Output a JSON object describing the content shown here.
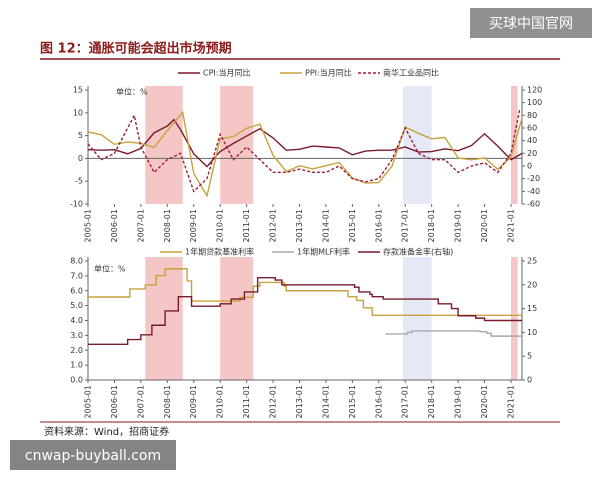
{
  "watermarks": [
    "买球中国官网",
    "cnwap-buyball.com"
  ],
  "source": "资料来源：Wind，招商证券",
  "chart_data": [
    {
      "type": "line",
      "title": "图 12：通胀可能会超出市场预期",
      "annotation": "单位：%",
      "xlim": [
        "2005-01",
        "2021-06"
      ],
      "xticks": [
        "2005-01",
        "2006-01",
        "2007-01",
        "2008-01",
        "2009-01",
        "2010-01",
        "2011-01",
        "2012-01",
        "2013-01",
        "2014-01",
        "2015-01",
        "2016-01",
        "2017-01",
        "2018-01",
        "2019-01",
        "2020-01",
        "2021-01"
      ],
      "ylim": [
        -10,
        15
      ],
      "yticks": [
        -10,
        -5,
        0,
        5,
        10,
        15
      ],
      "y2lim": [
        -60,
        120
      ],
      "y2ticks": [
        -60,
        -40,
        -20,
        0,
        20,
        40,
        60,
        80,
        100,
        120
      ],
      "highlight_ranges": [
        {
          "start": "2007-03",
          "end": "2008-08",
          "color": "#f2b8b8"
        },
        {
          "start": "2010-01",
          "end": "2011-04",
          "color": "#f2b8b8"
        },
        {
          "start": "2016-12",
          "end": "2018-01",
          "color": "#dfe3f5"
        },
        {
          "start": "2021-01",
          "end": "2021-04",
          "color": "#f2b8b8"
        }
      ],
      "series": [
        {
          "name": "CPI:当月同比",
          "color": "#7a1b2a",
          "x": [
            "2005-01",
            "2005-07",
            "2006-01",
            "2006-07",
            "2007-01",
            "2007-07",
            "2008-01",
            "2008-04",
            "2008-07",
            "2009-01",
            "2009-07",
            "2010-01",
            "2010-07",
            "2011-01",
            "2011-07",
            "2012-01",
            "2012-07",
            "2013-01",
            "2013-07",
            "2014-01",
            "2014-07",
            "2015-01",
            "2015-07",
            "2016-01",
            "2016-07",
            "2017-01",
            "2017-07",
            "2018-01",
            "2018-07",
            "2019-01",
            "2019-07",
            "2020-01",
            "2020-07",
            "2021-01",
            "2021-06"
          ],
          "values": [
            1.9,
            1.8,
            1.9,
            1.0,
            2.2,
            5.6,
            7.1,
            8.5,
            6.3,
            1.0,
            -1.8,
            1.5,
            3.3,
            4.9,
            6.5,
            4.5,
            1.8,
            2.0,
            2.7,
            2.5,
            2.3,
            0.8,
            1.6,
            1.8,
            1.8,
            2.5,
            1.4,
            1.5,
            2.1,
            1.7,
            2.8,
            5.4,
            2.7,
            -0.3,
            1.1
          ]
        },
        {
          "name": "PPI:当月同比",
          "color": "#c8a23c",
          "x": [
            "2005-01",
            "2005-07",
            "2006-01",
            "2006-07",
            "2007-01",
            "2007-07",
            "2008-01",
            "2008-08",
            "2009-01",
            "2009-07",
            "2010-01",
            "2010-07",
            "2011-01",
            "2011-07",
            "2012-01",
            "2012-07",
            "2013-01",
            "2013-07",
            "2014-01",
            "2014-07",
            "2015-01",
            "2015-07",
            "2016-01",
            "2016-07",
            "2017-01",
            "2017-07",
            "2018-01",
            "2018-07",
            "2019-01",
            "2019-07",
            "2020-01",
            "2020-07",
            "2021-01",
            "2021-06"
          ],
          "values": [
            5.8,
            5.2,
            3.1,
            3.6,
            3.3,
            2.4,
            6.1,
            10.1,
            -3.3,
            -8.2,
            4.3,
            4.8,
            6.6,
            7.5,
            0.7,
            -2.9,
            -1.6,
            -2.3,
            -1.6,
            -0.9,
            -4.3,
            -5.4,
            -5.3,
            -1.7,
            6.9,
            5.5,
            4.3,
            4.6,
            0.1,
            -0.3,
            0.1,
            -2.4,
            0.3,
            8.8
          ]
        },
        {
          "name": "南华工业品同比",
          "color": "#a01f3a",
          "axis": "y2",
          "dash": true,
          "x": [
            "2005-01",
            "2005-07",
            "2006-01",
            "2006-07",
            "2006-10",
            "2007-01",
            "2007-07",
            "2008-01",
            "2008-07",
            "2009-01",
            "2009-07",
            "2010-01",
            "2010-07",
            "2011-01",
            "2011-07",
            "2012-01",
            "2012-07",
            "2013-01",
            "2013-07",
            "2014-01",
            "2014-07",
            "2015-01",
            "2015-07",
            "2016-01",
            "2016-07",
            "2017-01",
            "2017-07",
            "2018-01",
            "2018-07",
            "2019-01",
            "2019-07",
            "2020-01",
            "2020-07",
            "2021-01",
            "2021-05"
          ],
          "values": [
            35,
            10,
            20,
            60,
            80,
            30,
            -10,
            10,
            20,
            -40,
            -20,
            50,
            10,
            30,
            10,
            -10,
            -10,
            -5,
            -10,
            -10,
            0,
            -20,
            -25,
            -20,
            10,
            60,
            20,
            10,
            10,
            -10,
            0,
            5,
            -10,
            20,
            90
          ]
        }
      ]
    },
    {
      "type": "line",
      "annotation": "单位：%",
      "xlim": [
        "2005-01",
        "2021-06"
      ],
      "xticks": [
        "2005-01",
        "2006-01",
        "2007-01",
        "2008-01",
        "2009-01",
        "2010-01",
        "2011-01",
        "2012-01",
        "2013-01",
        "2014-01",
        "2015-01",
        "2016-01",
        "2017-01",
        "2018-01",
        "2019-01",
        "2020-01",
        "2021-01"
      ],
      "ylim": [
        0,
        8
      ],
      "yticks": [
        {
          "value": 0,
          "label": "0.0"
        },
        {
          "value": 1,
          "label": "1.0"
        },
        {
          "value": 2,
          "label": "2.0"
        },
        {
          "value": 3,
          "label": "3.0"
        },
        {
          "value": 4,
          "label": "4.0"
        },
        {
          "value": 5,
          "label": "5.0"
        },
        {
          "value": 6,
          "label": "6.0"
        },
        {
          "value": 7,
          "label": "7.0"
        },
        {
          "value": 8,
          "label": "8.0"
        }
      ],
      "y2lim": [
        0,
        25
      ],
      "y2ticks": [
        0,
        5,
        10,
        15,
        20,
        25
      ],
      "highlight_ranges": [
        {
          "start": "2007-03",
          "end": "2008-08",
          "color": "#f2b8b8"
        },
        {
          "start": "2010-01",
          "end": "2011-04",
          "color": "#f2b8b8"
        },
        {
          "start": "2016-12",
          "end": "2018-01",
          "color": "#dfe3f5"
        },
        {
          "start": "2021-01",
          "end": "2021-04",
          "color": "#f2b8b8"
        }
      ],
      "series": [
        {
          "name": "1年期贷款基准利率",
          "color": "#c8a23c",
          "step": true,
          "x": [
            "2005-01",
            "2006-08",
            "2007-03",
            "2007-08",
            "2007-12",
            "2008-10",
            "2008-12",
            "2010-10",
            "2011-04",
            "2011-07",
            "2012-06",
            "2012-07",
            "2014-11",
            "2015-03",
            "2015-06",
            "2015-10",
            "2021-06"
          ],
          "values": [
            5.58,
            6.12,
            6.39,
            7.02,
            7.47,
            6.66,
            5.31,
            5.56,
            6.31,
            6.56,
            6.31,
            6.0,
            5.6,
            5.35,
            4.85,
            4.35,
            4.35
          ]
        },
        {
          "name": "1年期MLF利率",
          "color": "#a8a8a8",
          "step": true,
          "x": [
            "2016-04",
            "2017-02",
            "2017-04",
            "2019-11",
            "2020-02",
            "2020-04",
            "2021-06"
          ],
          "values": [
            3.1,
            3.2,
            3.3,
            3.25,
            3.15,
            2.95,
            2.95
          ]
        },
        {
          "name": "存款准备金率(右轴)",
          "color": "#7a1b2a",
          "axis": "y2",
          "step": true,
          "x": [
            "2005-01",
            "2006-07",
            "2007-01",
            "2007-06",
            "2007-12",
            "2008-06",
            "2008-12",
            "2010-01",
            "2010-06",
            "2010-12",
            "2011-06",
            "2012-02",
            "2012-05",
            "2015-02",
            "2015-04",
            "2015-09",
            "2015-10",
            "2016-03",
            "2018-04",
            "2018-10",
            "2019-01",
            "2019-09",
            "2020-01",
            "2021-06"
          ],
          "values": [
            7.5,
            8.5,
            9.5,
            11.5,
            14.5,
            17.5,
            15.5,
            16,
            17,
            18.5,
            21.5,
            21,
            20,
            19.5,
            18.5,
            18,
            17.5,
            17,
            16,
            15,
            13.5,
            13,
            12.5,
            12.5
          ]
        }
      ]
    }
  ]
}
